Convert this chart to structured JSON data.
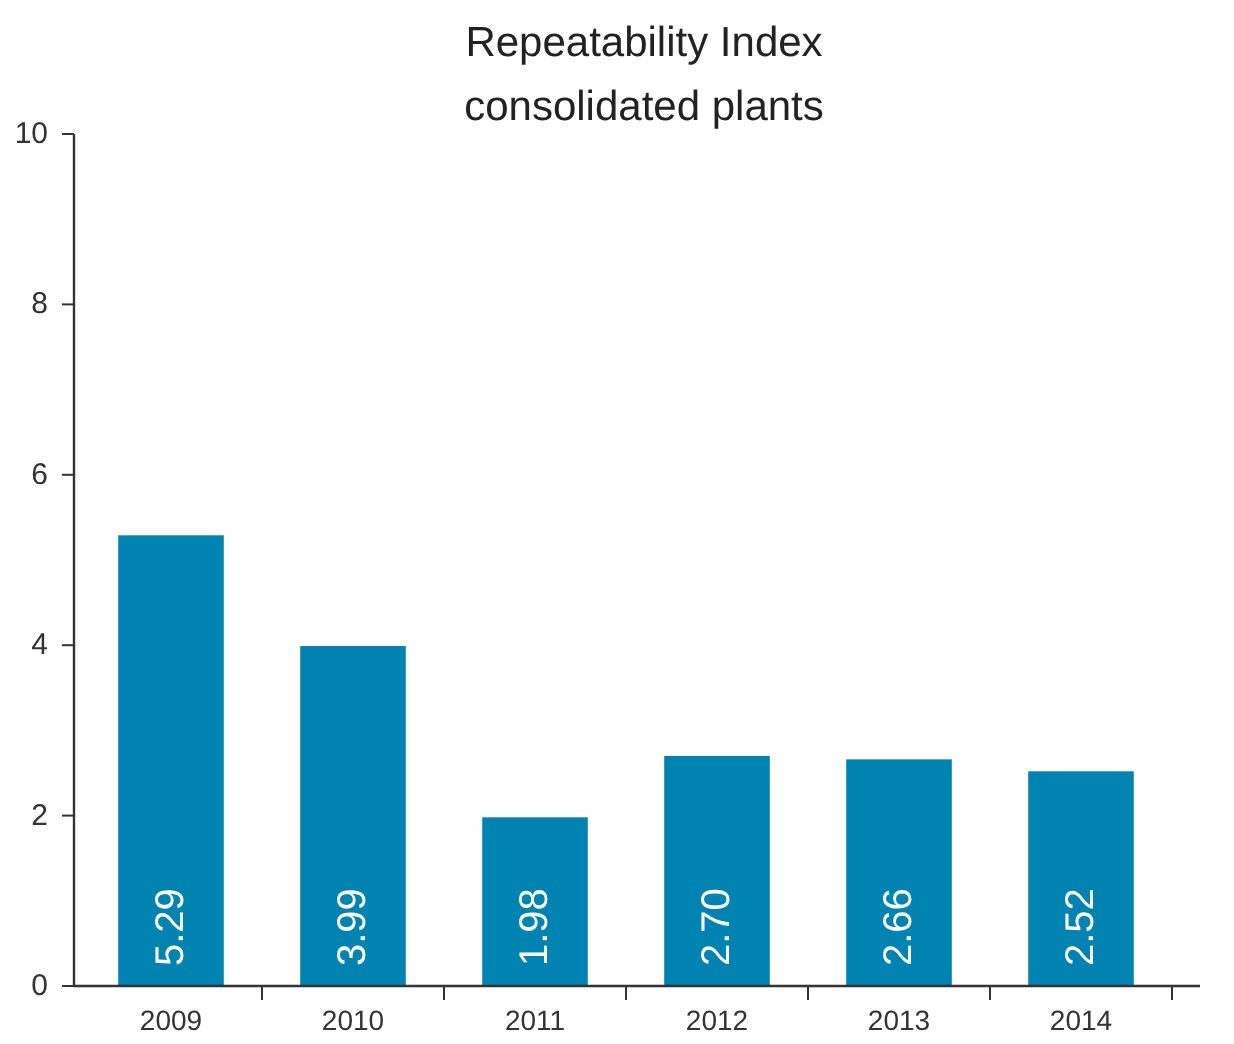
{
  "chart_data": {
    "type": "bar",
    "title": "Repeatability Index",
    "subtitle": "consolidated plants",
    "categories": [
      "2009",
      "2010",
      "2011",
      "2012",
      "2013",
      "2014"
    ],
    "values": [
      5.29,
      3.99,
      1.98,
      2.7,
      2.66,
      2.52
    ],
    "value_labels": [
      "5.29",
      "3.99",
      "1.98",
      "2.70",
      "2.66",
      "2.52"
    ],
    "color": "#0083b0",
    "ylim": [
      0,
      10
    ],
    "yticks": [
      0,
      2,
      4,
      6,
      8,
      10
    ]
  }
}
